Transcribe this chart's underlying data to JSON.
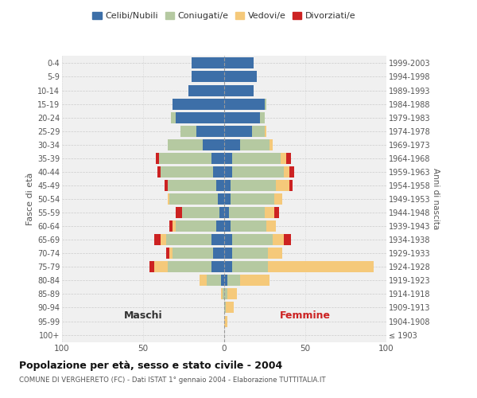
{
  "age_groups": [
    "100+",
    "95-99",
    "90-94",
    "85-89",
    "80-84",
    "75-79",
    "70-74",
    "65-69",
    "60-64",
    "55-59",
    "50-54",
    "45-49",
    "40-44",
    "35-39",
    "30-34",
    "25-29",
    "20-24",
    "15-19",
    "10-14",
    "5-9",
    "0-4"
  ],
  "birth_years": [
    "≤ 1903",
    "1904-1908",
    "1909-1913",
    "1914-1918",
    "1919-1923",
    "1924-1928",
    "1929-1933",
    "1934-1938",
    "1939-1943",
    "1944-1948",
    "1949-1953",
    "1954-1958",
    "1959-1963",
    "1964-1968",
    "1969-1973",
    "1974-1978",
    "1979-1983",
    "1984-1988",
    "1989-1993",
    "1994-1998",
    "1999-2003"
  ],
  "maschi": {
    "celibi": [
      0,
      0,
      0,
      0,
      2,
      8,
      7,
      8,
      5,
      3,
      4,
      5,
      7,
      8,
      13,
      17,
      30,
      32,
      22,
      20,
      20
    ],
    "coniugati": [
      0,
      0,
      0,
      1,
      9,
      27,
      25,
      28,
      25,
      23,
      30,
      30,
      32,
      32,
      22,
      10,
      3,
      0,
      0,
      0,
      0
    ],
    "vedovi": [
      0,
      0,
      0,
      1,
      4,
      8,
      2,
      3,
      2,
      0,
      1,
      0,
      0,
      0,
      0,
      0,
      0,
      0,
      0,
      0,
      0
    ],
    "divorziati": [
      0,
      0,
      0,
      0,
      0,
      3,
      2,
      4,
      2,
      4,
      0,
      2,
      2,
      2,
      0,
      0,
      0,
      0,
      0,
      0,
      0
    ]
  },
  "femmine": {
    "nubili": [
      0,
      0,
      0,
      0,
      2,
      5,
      5,
      5,
      4,
      3,
      4,
      4,
      5,
      5,
      10,
      17,
      22,
      25,
      18,
      20,
      18
    ],
    "coniugate": [
      0,
      0,
      1,
      2,
      8,
      22,
      22,
      25,
      22,
      22,
      27,
      28,
      32,
      30,
      18,
      8,
      3,
      1,
      0,
      0,
      0
    ],
    "vedove": [
      0,
      2,
      5,
      6,
      18,
      65,
      9,
      7,
      6,
      6,
      5,
      8,
      3,
      3,
      2,
      1,
      0,
      0,
      0,
      0,
      0
    ],
    "divorziate": [
      0,
      0,
      0,
      0,
      0,
      0,
      0,
      4,
      0,
      3,
      0,
      2,
      3,
      3,
      0,
      0,
      0,
      0,
      0,
      0,
      0
    ]
  },
  "colors": {
    "celibi": "#3d6fa8",
    "coniugati": "#b5c9a1",
    "vedovi": "#f5c97a",
    "divorziati": "#cc2222"
  },
  "xlim": 100,
  "title": "Popolazione per età, sesso e stato civile - 2004",
  "subtitle": "COMUNE DI VERGHERETO (FC) - Dati ISTAT 1° gennaio 2004 - Elaborazione TUTTITALIA.IT",
  "legend_labels": [
    "Celibi/Nubili",
    "Coniugati/e",
    "Vedovi/e",
    "Divorziati/e"
  ],
  "ylabel_left": "Fasce di età",
  "ylabel_right": "Anni di nascita",
  "xlabel_maschi": "Maschi",
  "xlabel_femmine": "Femmine",
  "bg_color": "#f0f0f0"
}
